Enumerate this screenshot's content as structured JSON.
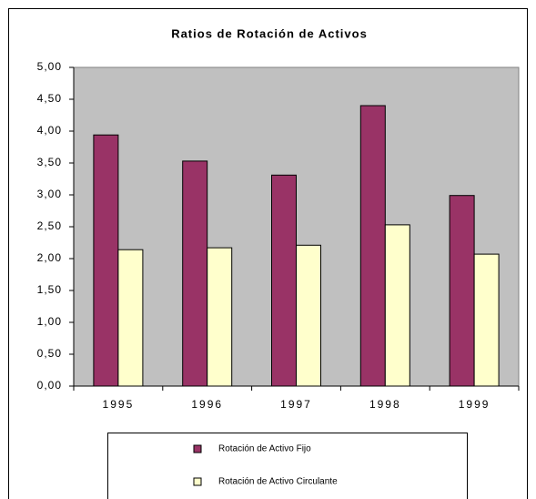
{
  "chart_data": {
    "type": "bar",
    "title": "Ratios de Rotación de Activos",
    "categories": [
      "1995",
      "1996",
      "1997",
      "1998",
      "1999"
    ],
    "series": [
      {
        "name": "Rotación de Activo Fijo",
        "color": "#993366",
        "values": [
          3.94,
          3.53,
          3.31,
          4.4,
          2.99
        ]
      },
      {
        "name": "Rotación de Activo Circulante",
        "color": "#ffffcc",
        "values": [
          2.14,
          2.17,
          2.21,
          2.53,
          2.07
        ]
      }
    ],
    "ylim": [
      0,
      5
    ],
    "yticks": [
      {
        "value": 0,
        "label": "0,00"
      },
      {
        "value": 0.5,
        "label": "0,50"
      },
      {
        "value": 1,
        "label": "1,00"
      },
      {
        "value": 1.5,
        "label": "1,50"
      },
      {
        "value": 2,
        "label": "2,00"
      },
      {
        "value": 2.5,
        "label": "2,50"
      },
      {
        "value": 3,
        "label": "3,00"
      },
      {
        "value": 3.5,
        "label": "3,50"
      },
      {
        "value": 4,
        "label": "4,00"
      },
      {
        "value": 4.5,
        "label": "4,50"
      },
      {
        "value": 5,
        "label": "5,00"
      }
    ],
    "plot_background": "#c0c0c0",
    "legend": "bottom"
  }
}
